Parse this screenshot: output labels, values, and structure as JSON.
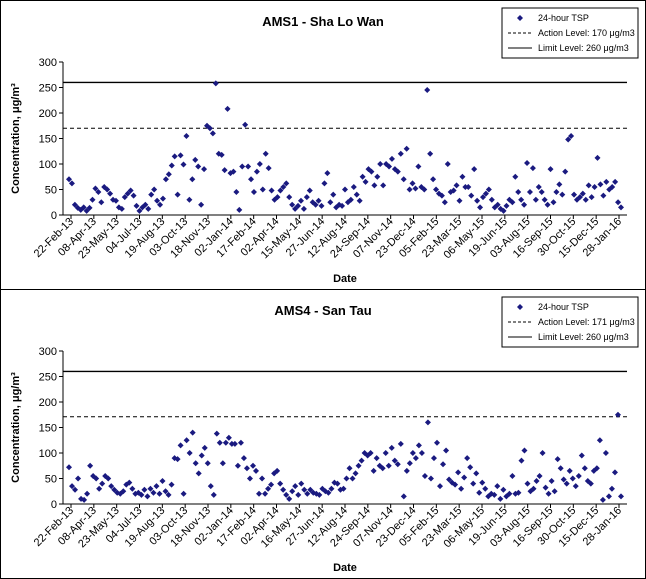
{
  "chart_data": [
    {
      "type": "scatter",
      "title": "AMS1 - Sha Lo Wan",
      "xlabel": "Date",
      "ylabel": "Concentration, μg/m³",
      "ylim": [
        0,
        300
      ],
      "yticks": [
        "0",
        "50",
        "100",
        "150",
        "200",
        "250",
        "300"
      ],
      "xticks": [
        "22-Feb-13",
        "08-Apr-13",
        "23-May-13",
        "04-Jul-13",
        "19-Aug-13",
        "03-Oct-13",
        "18-Nov-13",
        "02-Jan-14",
        "17-Feb-14",
        "02-Apr-14",
        "15-May-14",
        "27-Jun-14",
        "12-Aug-14",
        "24-Sep-14",
        "07-Nov-14",
        "23-Dec-14",
        "05-Feb-15",
        "23-Mar-15",
        "06-May-15",
        "19-Jun-15",
        "03-Aug-15",
        "16-Sep-15",
        "30-Oct-15",
        "15-Dec-15",
        "28-Jan-16"
      ],
      "grid": false,
      "legend_position": "top-right",
      "series": [
        {
          "name": "24-hour TSP",
          "marker": "diamond",
          "color": "#1a1a80",
          "values": [
            70,
            62,
            20,
            14,
            10,
            15,
            8,
            14,
            30,
            52,
            45,
            25,
            55,
            50,
            42,
            30,
            28,
            15,
            12,
            35,
            42,
            48,
            38,
            18,
            8,
            15,
            20,
            12,
            40,
            50,
            28,
            20,
            32,
            70,
            80,
            97,
            115,
            40,
            117,
            99,
            155,
            30,
            70,
            108,
            95,
            20,
            90,
            175,
            170,
            160,
            258,
            120,
            118,
            88,
            208,
            82,
            85,
            45,
            10,
            95,
            177,
            95,
            70,
            45,
            85,
            100,
            50,
            120,
            92,
            48,
            30,
            35,
            48,
            55,
            62,
            35,
            20,
            12,
            18,
            28,
            12,
            35,
            48,
            25,
            20,
            28,
            18,
            62,
            82,
            25,
            40,
            15,
            20,
            18,
            50,
            25,
            30,
            55,
            40,
            28,
            75,
            65,
            90,
            85,
            58,
            75,
            100,
            58,
            100,
            95,
            110,
            90,
            85,
            120,
            70,
            130,
            50,
            62,
            52,
            95,
            55,
            50,
            245,
            120,
            70,
            50,
            42,
            38,
            25,
            100,
            45,
            48,
            58,
            28,
            75,
            55,
            55,
            38,
            90,
            28,
            15,
            35,
            42,
            50,
            30,
            15,
            20,
            12,
            8,
            18,
            30,
            25,
            75,
            45,
            30,
            20,
            102,
            45,
            92,
            30,
            55,
            45,
            30,
            20,
            90,
            25,
            45,
            60,
            40,
            85,
            148,
            155,
            40,
            30,
            35,
            42,
            30,
            58,
            35,
            55,
            112,
            60,
            38,
            65,
            50,
            55,
            65,
            25,
            15
          ]
        }
      ],
      "reference_lines": [
        {
          "name": "Action Level: 170 μg/m3",
          "value": 170,
          "style": "dashed"
        },
        {
          "name": "Limit Level: 260 μg/m3",
          "value": 260,
          "style": "solid"
        }
      ]
    },
    {
      "type": "scatter",
      "title": "AMS4 - San Tau",
      "xlabel": "Date",
      "ylabel": "Concentration, μg/m³",
      "ylim": [
        0,
        300
      ],
      "yticks": [
        "0",
        "50",
        "100",
        "150",
        "200",
        "250",
        "300"
      ],
      "xticks": [
        "22-Feb-13",
        "08-Apr-13",
        "23-May-13",
        "04-Jul-13",
        "19-Aug-13",
        "03-Oct-13",
        "18-Nov-13",
        "02-Jan-14",
        "17-Feb-14",
        "02-Apr-14",
        "16-May-14",
        "27-Jun-14",
        "12-Aug-14",
        "24-Sep-14",
        "07-Nov-14",
        "23-Dec-14",
        "05-Feb-15",
        "23-Mar-15",
        "06-May-15",
        "19-Jun-15",
        "03-Aug-15",
        "16-Sep-15",
        "30-Oct-15",
        "15-Dec-15",
        "28-Jan-16"
      ],
      "grid": false,
      "legend_position": "top-right",
      "series": [
        {
          "name": "24-hour TSP",
          "marker": "diamond",
          "color": "#1a1a80",
          "values": [
            72,
            35,
            28,
            50,
            10,
            8,
            20,
            75,
            55,
            50,
            30,
            40,
            55,
            50,
            35,
            28,
            22,
            20,
            25,
            38,
            42,
            30,
            20,
            22,
            18,
            28,
            15,
            30,
            22,
            35,
            20,
            45,
            25,
            18,
            38,
            90,
            88,
            115,
            20,
            125,
            100,
            140,
            80,
            60,
            95,
            110,
            80,
            35,
            18,
            138,
            120,
            80,
            120,
            130,
            118,
            118,
            75,
            120,
            90,
            70,
            50,
            75,
            65,
            20,
            50,
            20,
            30,
            38,
            60,
            65,
            40,
            28,
            18,
            10,
            25,
            35,
            18,
            40,
            28,
            20,
            28,
            22,
            20,
            18,
            30,
            25,
            22,
            30,
            42,
            40,
            28,
            30,
            50,
            70,
            50,
            60,
            75,
            85,
            100,
            95,
            100,
            65,
            90,
            75,
            70,
            100,
            75,
            110,
            85,
            78,
            118,
            15,
            65,
            80,
            100,
            90,
            115,
            100,
            55,
            160,
            50,
            90,
            120,
            35,
            78,
            105,
            48,
            42,
            38,
            62,
            30,
            52,
            90,
            72,
            40,
            60,
            22,
            42,
            30,
            15,
            20,
            18,
            35,
            10,
            28,
            15,
            20,
            55,
            20,
            22,
            85,
            105,
            40,
            25,
            30,
            45,
            55,
            100,
            32,
            20,
            45,
            25,
            88,
            70,
            48,
            40,
            65,
            50,
            35,
            55,
            95,
            70,
            45,
            40,
            65,
            70,
            125,
            8,
            100,
            15,
            30,
            62,
            175,
            15
          ]
        }
      ],
      "reference_lines": [
        {
          "name": "Action Level: 171 μg/m3",
          "value": 171,
          "style": "dashed"
        },
        {
          "name": "Limit Level: 260 μg/m3",
          "value": 260,
          "style": "solid"
        }
      ]
    }
  ]
}
